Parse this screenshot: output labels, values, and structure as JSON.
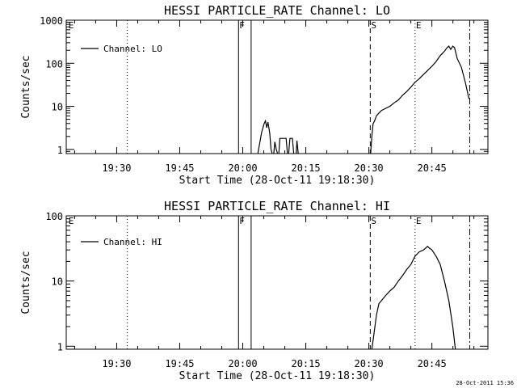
{
  "stamp": "28-Oct-2011 15:36",
  "chart_data": [
    {
      "type": "line",
      "title": "HESSI PARTICLE_RATE Channel: LO",
      "xlabel": "Start Time (28-Oct-11 19:18:30)",
      "ylabel": "Counts/sec",
      "log_y": true,
      "grid": false,
      "legend_position": "top-left",
      "xlim": [
        19.3,
        20.9722
      ],
      "ylim": [
        0.8,
        1000
      ],
      "x_ticks": [
        19.5,
        19.75,
        20.0,
        20.25,
        20.5,
        20.75
      ],
      "x_tick_labels": [
        "19:30",
        "19:45",
        "20:00",
        "20:15",
        "20:30",
        "20:45"
      ],
      "y_ticks": [
        1,
        10,
        100,
        1000
      ],
      "y_tick_labels": [
        "1",
        "10",
        "100",
        "1000"
      ],
      "markers": [
        {
          "x": 19.306,
          "style": "none",
          "label": "E"
        },
        {
          "x": 19.5417,
          "style": "dotted",
          "label": ""
        },
        {
          "x": 19.9833,
          "style": "solid",
          "label": "F"
        },
        {
          "x": 20.0333,
          "style": "solid",
          "label": ""
        },
        {
          "x": 20.5056,
          "style": "dashed",
          "label": "S"
        },
        {
          "x": 20.6833,
          "style": "dotted",
          "label": "E"
        },
        {
          "x": 20.9,
          "style": "dashdot",
          "label": ""
        }
      ],
      "series": [
        {
          "name": "Channel: LO",
          "segments": [
            [
              [
                20.06,
                0.8
              ],
              [
                20.075,
                2.5
              ],
              [
                20.085,
                4
              ],
              [
                20.09,
                4.6
              ],
              [
                20.095,
                3.2
              ],
              [
                20.1,
                4.3
              ],
              [
                20.107,
                2.4
              ],
              [
                20.112,
                1
              ],
              [
                20.117,
                0.8
              ]
            ],
            [
              [
                20.123,
                0.8
              ],
              [
                20.127,
                1.5
              ],
              [
                20.133,
                1
              ],
              [
                20.138,
                0.8
              ]
            ],
            [
              [
                20.143,
                0.8
              ],
              [
                20.147,
                1.8
              ],
              [
                20.172,
                1.8
              ],
              [
                20.177,
                0.8
              ]
            ],
            [
              [
                20.182,
                0.8
              ],
              [
                20.187,
                1.8
              ],
              [
                20.197,
                1.8
              ],
              [
                20.202,
                0.8
              ]
            ],
            [
              [
                20.212,
                0.8
              ],
              [
                20.215,
                1.6
              ],
              [
                20.22,
                0.8
              ]
            ],
            [
              [
                20.507,
                0.8
              ],
              [
                20.512,
                2
              ],
              [
                20.517,
                4
              ],
              [
                20.522,
                4.5
              ],
              [
                20.53,
                6
              ],
              [
                20.54,
                7
              ],
              [
                20.55,
                8
              ],
              [
                20.567,
                9
              ],
              [
                20.583,
                10
              ],
              [
                20.6,
                12
              ],
              [
                20.617,
                14
              ],
              [
                20.633,
                18
              ],
              [
                20.65,
                22
              ],
              [
                20.667,
                28
              ],
              [
                20.683,
                36
              ],
              [
                20.7,
                44
              ],
              [
                20.717,
                55
              ],
              [
                20.733,
                68
              ],
              [
                20.75,
                85
              ],
              [
                20.767,
                110
              ],
              [
                20.783,
                150
              ],
              [
                20.8,
                190
              ],
              [
                20.81,
                230
              ],
              [
                20.817,
                250
              ],
              [
                20.825,
                210
              ],
              [
                20.833,
                250
              ],
              [
                20.84,
                230
              ],
              [
                20.85,
                130
              ],
              [
                20.867,
                80
              ],
              [
                20.883,
                35
              ],
              [
                20.897,
                15
              ]
            ]
          ]
        }
      ]
    },
    {
      "type": "line",
      "title": "HESSI PARTICLE_RATE Channel: HI",
      "xlabel": "Start Time (28-Oct-11 19:18:30)",
      "ylabel": "Counts/sec",
      "log_y": true,
      "grid": false,
      "legend_position": "top-left",
      "xlim": [
        19.3,
        20.9722
      ],
      "ylim": [
        0.9,
        100
      ],
      "x_ticks": [
        19.5,
        19.75,
        20.0,
        20.25,
        20.5,
        20.75
      ],
      "x_tick_labels": [
        "19:30",
        "19:45",
        "20:00",
        "20:15",
        "20:30",
        "20:45"
      ],
      "y_ticks": [
        1,
        10,
        100
      ],
      "y_tick_labels": [
        "1",
        "10",
        "100"
      ],
      "markers": [
        {
          "x": 19.306,
          "style": "none",
          "label": "E"
        },
        {
          "x": 19.5417,
          "style": "dotted",
          "label": ""
        },
        {
          "x": 19.9833,
          "style": "solid",
          "label": "F"
        },
        {
          "x": 20.0333,
          "style": "solid",
          "label": ""
        },
        {
          "x": 20.5056,
          "style": "dashed",
          "label": "S"
        },
        {
          "x": 20.6833,
          "style": "dotted",
          "label": "E"
        },
        {
          "x": 20.9,
          "style": "dashdot",
          "label": ""
        }
      ],
      "series": [
        {
          "name": "Channel: HI",
          "segments": [
            [
              [
                20.512,
                0.9
              ],
              [
                20.52,
                1.5
              ],
              [
                20.53,
                3
              ],
              [
                20.54,
                4.5
              ],
              [
                20.55,
                5
              ],
              [
                20.567,
                6
              ],
              [
                20.583,
                7
              ],
              [
                20.6,
                8
              ],
              [
                20.617,
                10
              ],
              [
                20.633,
                12
              ],
              [
                20.65,
                15
              ],
              [
                20.667,
                18
              ],
              [
                20.683,
                24
              ],
              [
                20.7,
                28
              ],
              [
                20.717,
                30
              ],
              [
                20.733,
                34
              ],
              [
                20.74,
                32
              ],
              [
                20.75,
                30
              ],
              [
                20.767,
                24
              ],
              [
                20.783,
                18
              ],
              [
                20.8,
                10
              ],
              [
                20.817,
                5
              ],
              [
                20.833,
                2
              ],
              [
                20.843,
                0.9
              ]
            ]
          ]
        }
      ]
    }
  ]
}
